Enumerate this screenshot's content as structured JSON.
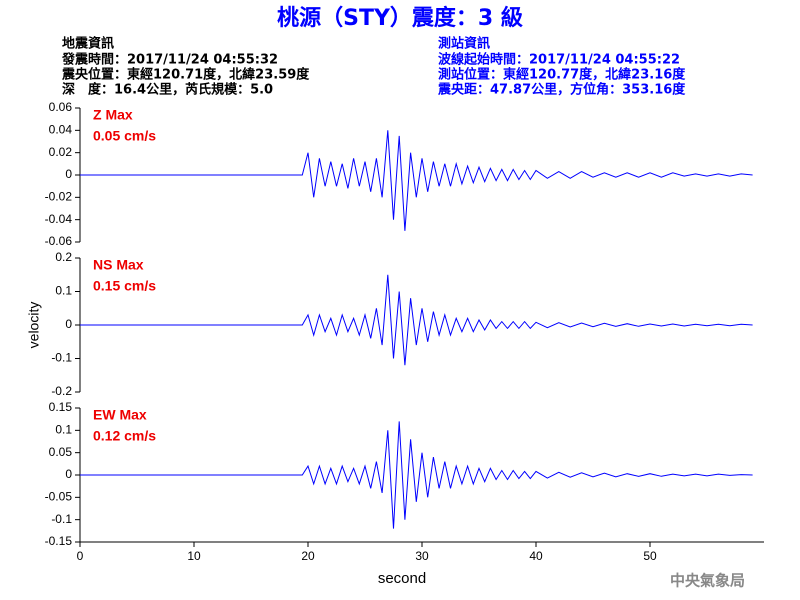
{
  "header": {
    "title": "桃源（STY）震度：3 級",
    "left": [
      "地震資訊",
      "發震時間：2017/11/24 04:55:32",
      "震央位置：東經120.71度，北緯23.59度",
      "深　度：16.4公里，芮氏規模：5.0"
    ],
    "right": [
      "測站資訊",
      "波線起始時間：2017/11/24 04:55:22",
      "測站位置：東經120.77度，北緯23.16度",
      "震央距：47.87公里，方位角：353.16度"
    ]
  },
  "footer": "中央氣象局",
  "chart_data": [
    {
      "type": "line",
      "annotations": [
        "Z Max",
        "0.05 cm/s"
      ],
      "color": "#0000ff",
      "xlim": [
        0,
        60
      ],
      "ylim": [
        -0.06,
        0.06
      ],
      "yticks": [
        -0.06,
        -0.04,
        -0.02,
        0,
        0.02,
        0.04,
        0.06
      ],
      "x": [
        0,
        5,
        10,
        15,
        19.5,
        20,
        20.5,
        21,
        21.5,
        22,
        22.5,
        23,
        23.5,
        24,
        24.5,
        25,
        25.5,
        26,
        26.5,
        27,
        27.5,
        28,
        28.5,
        29,
        29.5,
        30,
        30.5,
        31,
        31.5,
        32,
        32.5,
        33,
        33.5,
        34,
        34.5,
        35,
        35.5,
        36,
        36.5,
        37,
        37.5,
        38,
        38.5,
        39,
        39.5,
        40,
        41,
        42,
        43,
        44,
        45,
        46,
        47,
        48,
        49,
        50,
        51,
        52,
        53,
        54,
        55,
        56,
        57,
        58,
        59
      ],
      "values": [
        0,
        0,
        0,
        0,
        0,
        0.02,
        -0.02,
        0.015,
        -0.01,
        0.012,
        -0.01,
        0.01,
        -0.012,
        0.015,
        -0.01,
        0.012,
        -0.015,
        0.015,
        -0.02,
        0.04,
        -0.04,
        0.035,
        -0.05,
        0.02,
        -0.02,
        0.015,
        -0.015,
        0.012,
        -0.01,
        0.01,
        -0.01,
        0.01,
        -0.008,
        0.008,
        -0.007,
        0.007,
        -0.006,
        0.006,
        -0.005,
        0.005,
        -0.005,
        0.005,
        -0.004,
        0.004,
        -0.004,
        0.004,
        -0.003,
        0.003,
        -0.003,
        0.003,
        -0.002,
        0.002,
        -0.002,
        0.002,
        -0.002,
        0.002,
        -0.002,
        0.002,
        -0.001,
        0.001,
        -0.001,
        0.001,
        -0.001,
        0.001,
        0
      ]
    },
    {
      "type": "line",
      "annotations": [
        "NS Max",
        "0.15 cm/s"
      ],
      "color": "#0000ff",
      "ylabel": "velocity",
      "xlim": [
        0,
        60
      ],
      "ylim": [
        -0.2,
        0.2
      ],
      "yticks": [
        -0.2,
        -0.1,
        0,
        0.1,
        0.2
      ],
      "x": [
        0,
        5,
        10,
        15,
        19.5,
        20,
        20.5,
        21,
        21.5,
        22,
        22.5,
        23,
        23.5,
        24,
        24.5,
        25,
        25.5,
        26,
        26.5,
        27,
        27.5,
        28,
        28.5,
        29,
        29.5,
        30,
        30.5,
        31,
        31.5,
        32,
        32.5,
        33,
        33.5,
        34,
        34.5,
        35,
        35.5,
        36,
        36.5,
        37,
        37.5,
        38,
        38.5,
        39,
        39.5,
        40,
        41,
        42,
        43,
        44,
        45,
        46,
        47,
        48,
        49,
        50,
        51,
        52,
        53,
        54,
        55,
        56,
        57,
        58,
        59
      ],
      "values": [
        0,
        0,
        0,
        0,
        0,
        0.03,
        -0.03,
        0.03,
        -0.02,
        0.02,
        -0.03,
        0.03,
        -0.02,
        0.02,
        -0.03,
        0.03,
        -0.04,
        0.05,
        -0.06,
        0.15,
        -0.1,
        0.1,
        -0.12,
        0.08,
        -0.06,
        0.05,
        -0.05,
        0.04,
        -0.03,
        0.03,
        -0.03,
        0.02,
        -0.02,
        0.02,
        -0.02,
        0.015,
        -0.015,
        0.015,
        -0.01,
        0.01,
        -0.01,
        0.01,
        -0.01,
        0.01,
        -0.01,
        0.008,
        -0.008,
        0.007,
        -0.006,
        0.006,
        -0.005,
        0.005,
        -0.004,
        0.004,
        -0.004,
        0.003,
        -0.003,
        0.003,
        -0.003,
        0.002,
        -0.002,
        0.002,
        -0.002,
        0.002,
        0
      ]
    },
    {
      "type": "line",
      "annotations": [
        "EW Max",
        "0.12 cm/s"
      ],
      "color": "#0000ff",
      "xlabel": "second",
      "xlim": [
        0,
        60
      ],
      "xticks": [
        0,
        10,
        20,
        30,
        40,
        50
      ],
      "ylim": [
        -0.15,
        0.15
      ],
      "yticks": [
        -0.15,
        -0.1,
        -0.05,
        0,
        0.05,
        0.1,
        0.15
      ],
      "x": [
        0,
        5,
        10,
        15,
        19.5,
        20,
        20.5,
        21,
        21.5,
        22,
        22.5,
        23,
        23.5,
        24,
        24.5,
        25,
        25.5,
        26,
        26.5,
        27,
        27.5,
        28,
        28.5,
        29,
        29.5,
        30,
        30.5,
        31,
        31.5,
        32,
        32.5,
        33,
        33.5,
        34,
        34.5,
        35,
        35.5,
        36,
        36.5,
        37,
        37.5,
        38,
        38.5,
        39,
        39.5,
        40,
        41,
        42,
        43,
        44,
        45,
        46,
        47,
        48,
        49,
        50,
        51,
        52,
        53,
        54,
        55,
        56,
        57,
        58,
        59
      ],
      "values": [
        0,
        0,
        0,
        0,
        0,
        0.02,
        -0.02,
        0.02,
        -0.02,
        0.015,
        -0.02,
        0.02,
        -0.015,
        0.015,
        -0.02,
        0.02,
        -0.03,
        0.03,
        -0.04,
        0.1,
        -0.12,
        0.12,
        -0.1,
        0.08,
        -0.06,
        0.05,
        -0.05,
        0.04,
        -0.03,
        0.03,
        -0.03,
        0.02,
        -0.02,
        0.02,
        -0.02,
        0.015,
        -0.015,
        0.015,
        -0.01,
        0.01,
        -0.01,
        0.01,
        -0.008,
        0.008,
        -0.008,
        0.008,
        -0.007,
        0.006,
        -0.005,
        0.005,
        -0.004,
        0.004,
        -0.004,
        0.003,
        -0.003,
        0.003,
        -0.003,
        0.002,
        -0.002,
        0.002,
        -0.002,
        0.002,
        -0.001,
        0.001,
        0
      ]
    }
  ]
}
